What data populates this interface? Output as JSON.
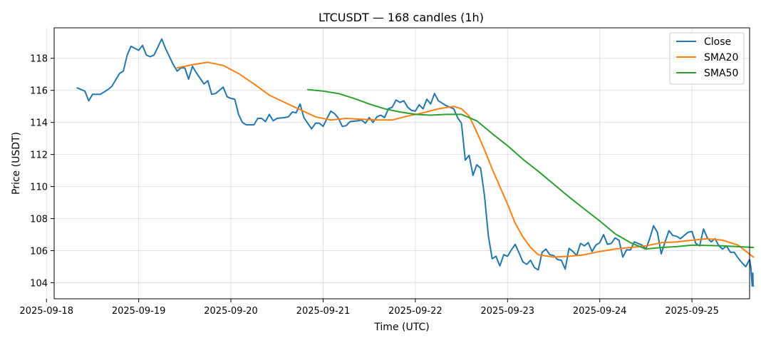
{
  "chart_data": {
    "type": "line",
    "title": "LTCUSDT — 168 candles (1h)",
    "xlabel": "Time (UTC)",
    "ylabel": "Price (USDT)",
    "x_range": [
      "2025-09-18T02:00",
      "2025-09-25T15:00"
    ],
    "ylim": [
      103.0,
      119.9
    ],
    "x_ticks": [
      "2025-09-18",
      "2025-09-19",
      "2025-09-20",
      "2025-09-21",
      "2025-09-22",
      "2025-09-23",
      "2025-09-24",
      "2025-09-25"
    ],
    "y_ticks": [
      104,
      106,
      108,
      110,
      112,
      114,
      116,
      118
    ],
    "grid": true,
    "legend_position": "top-right",
    "series": [
      {
        "name": "Close",
        "color": "#1f77b4",
        "points": [
          [
            "2025-09-18T08:00",
            116.15
          ],
          [
            "2025-09-18T10:00",
            115.95
          ],
          [
            "2025-09-18T11:00",
            115.35
          ],
          [
            "2025-09-18T12:00",
            115.75
          ],
          [
            "2025-09-18T14:00",
            115.75
          ],
          [
            "2025-09-18T16:00",
            116.05
          ],
          [
            "2025-09-18T17:00",
            116.25
          ],
          [
            "2025-09-18T19:00",
            117.05
          ],
          [
            "2025-09-18T20:00",
            117.2
          ],
          [
            "2025-09-18T21:00",
            118.2
          ],
          [
            "2025-09-18T22:00",
            118.75
          ],
          [
            "2025-09-19T00:00",
            118.5
          ],
          [
            "2025-09-18T23:59",
            118.5
          ],
          [
            "2025-09-19T01:00",
            118.8
          ],
          [
            "2025-09-19T02:00",
            118.2
          ],
          [
            "2025-09-19T03:00",
            118.1
          ],
          [
            "2025-09-19T04:00",
            118.2
          ],
          [
            "2025-09-19T06:00",
            119.2
          ],
          [
            "2025-09-19T07:00",
            118.6
          ],
          [
            "2025-09-19T09:00",
            117.6
          ],
          [
            "2025-09-19T10:00",
            117.2
          ],
          [
            "2025-09-19T11:00",
            117.4
          ],
          [
            "2025-09-19T12:00",
            117.4
          ],
          [
            "2025-09-19T13:00",
            116.7
          ],
          [
            "2025-09-19T14:00",
            117.5
          ],
          [
            "2025-09-19T15:00",
            117.1
          ],
          [
            "2025-09-19T17:00",
            116.4
          ],
          [
            "2025-09-19T18:00",
            116.6
          ],
          [
            "2025-09-19T19:00",
            115.75
          ],
          [
            "2025-09-19T20:00",
            115.8
          ],
          [
            "2025-09-19T22:00",
            116.2
          ],
          [
            "2025-09-19T23:00",
            115.6
          ],
          [
            "2025-09-20T00:00",
            115.5
          ],
          [
            "2025-09-20T01:00",
            115.45
          ],
          [
            "2025-09-20T02:00",
            114.5
          ],
          [
            "2025-09-20T03:00",
            114.0
          ],
          [
            "2025-09-20T04:00",
            113.85
          ],
          [
            "2025-09-20T06:00",
            113.85
          ],
          [
            "2025-09-20T07:00",
            114.25
          ],
          [
            "2025-09-20T08:00",
            114.25
          ],
          [
            "2025-09-20T09:00",
            114.05
          ],
          [
            "2025-09-20T10:00",
            114.5
          ],
          [
            "2025-09-20T11:00",
            114.1
          ],
          [
            "2025-09-20T12:00",
            114.25
          ],
          [
            "2025-09-20T14:00",
            114.3
          ],
          [
            "2025-09-20T15:00",
            114.35
          ],
          [
            "2025-09-20T16:00",
            114.65
          ],
          [
            "2025-09-20T17:00",
            114.6
          ],
          [
            "2025-09-20T18:00",
            115.15
          ],
          [
            "2025-09-20T19:00",
            114.3
          ],
          [
            "2025-09-20T20:00",
            113.95
          ],
          [
            "2025-09-20T21:00",
            113.6
          ],
          [
            "2025-09-20T22:00",
            113.95
          ],
          [
            "2025-09-20T23:00",
            113.95
          ],
          [
            "2025-09-21T00:00",
            113.75
          ],
          [
            "2025-09-21T01:00",
            114.25
          ],
          [
            "2025-09-21T02:00",
            114.7
          ],
          [
            "2025-09-21T03:00",
            114.55
          ],
          [
            "2025-09-21T04:00",
            114.25
          ],
          [
            "2025-09-21T05:00",
            113.75
          ],
          [
            "2025-09-21T06:00",
            113.8
          ],
          [
            "2025-09-21T07:00",
            114.05
          ],
          [
            "2025-09-21T09:00",
            114.1
          ],
          [
            "2025-09-21T10:00",
            114.15
          ],
          [
            "2025-09-21T11:00",
            113.95
          ],
          [
            "2025-09-21T12:00",
            114.3
          ],
          [
            "2025-09-21T13:00",
            114.0
          ],
          [
            "2025-09-21T14:00",
            114.35
          ],
          [
            "2025-09-21T15:00",
            114.45
          ],
          [
            "2025-09-21T16:00",
            114.3
          ],
          [
            "2025-09-21T17:00",
            114.85
          ],
          [
            "2025-09-21T18:00",
            114.95
          ],
          [
            "2025-09-21T19:00",
            115.4
          ],
          [
            "2025-09-21T20:00",
            115.25
          ],
          [
            "2025-09-21T21:00",
            115.35
          ],
          [
            "2025-09-21T22:00",
            114.95
          ],
          [
            "2025-09-21T23:00",
            114.75
          ],
          [
            "2025-09-22T00:00",
            114.7
          ],
          [
            "2025-09-22T01:00",
            115.1
          ],
          [
            "2025-09-22T02:00",
            114.85
          ],
          [
            "2025-09-22T03:00",
            115.45
          ],
          [
            "2025-09-22T04:00",
            115.15
          ],
          [
            "2025-09-22T05:00",
            115.8
          ],
          [
            "2025-09-22T06:00",
            115.35
          ],
          [
            "2025-09-22T07:00",
            115.2
          ],
          [
            "2025-09-22T08:00",
            115.05
          ],
          [
            "2025-09-22T09:00",
            114.95
          ],
          [
            "2025-09-22T10:00",
            114.85
          ],
          [
            "2025-09-22T11:00",
            114.3
          ],
          [
            "2025-09-22T12:00",
            113.95
          ],
          [
            "2025-09-22T13:00",
            111.65
          ],
          [
            "2025-09-22T14:00",
            111.95
          ],
          [
            "2025-09-22T15:00",
            110.7
          ],
          [
            "2025-09-22T16:00",
            111.35
          ],
          [
            "2025-09-22T17:00",
            111.15
          ],
          [
            "2025-09-22T18:00",
            109.45
          ],
          [
            "2025-09-22T19:00",
            106.95
          ],
          [
            "2025-09-22T20:00",
            105.5
          ],
          [
            "2025-09-22T21:00",
            105.65
          ],
          [
            "2025-09-22T22:00",
            105.05
          ],
          [
            "2025-09-22T23:00",
            105.75
          ],
          [
            "2025-09-23T00:00",
            105.65
          ],
          [
            "2025-09-23T01:00",
            106.05
          ],
          [
            "2025-09-23T02:00",
            106.4
          ],
          [
            "2025-09-23T03:00",
            105.85
          ],
          [
            "2025-09-23T04:00",
            105.3
          ],
          [
            "2025-09-23T05:00",
            105.15
          ],
          [
            "2025-09-23T06:00",
            105.4
          ],
          [
            "2025-09-23T07:00",
            104.95
          ],
          [
            "2025-09-23T08:00",
            104.8
          ],
          [
            "2025-09-23T09:00",
            105.9
          ],
          [
            "2025-09-23T10:00",
            106.1
          ],
          [
            "2025-09-23T11:00",
            105.75
          ],
          [
            "2025-09-23T12:00",
            105.7
          ],
          [
            "2025-09-23T13:00",
            105.45
          ],
          [
            "2025-09-23T14:00",
            105.4
          ],
          [
            "2025-09-23T15:00",
            104.85
          ],
          [
            "2025-09-23T16:00",
            106.15
          ],
          [
            "2025-09-23T17:00",
            105.95
          ],
          [
            "2025-09-23T18:00",
            105.7
          ],
          [
            "2025-09-23T19:00",
            106.45
          ],
          [
            "2025-09-23T20:00",
            106.3
          ],
          [
            "2025-09-23T21:00",
            106.5
          ],
          [
            "2025-09-23T22:00",
            105.95
          ],
          [
            "2025-09-23T23:00",
            106.35
          ],
          [
            "2025-09-24T00:00",
            106.5
          ],
          [
            "2025-09-24T01:00",
            107.0
          ],
          [
            "2025-09-24T02:00",
            106.4
          ],
          [
            "2025-09-24T03:00",
            106.45
          ],
          [
            "2025-09-24T04:00",
            106.8
          ],
          [
            "2025-09-24T05:00",
            106.65
          ],
          [
            "2025-09-24T06:00",
            105.6
          ],
          [
            "2025-09-24T07:00",
            106.05
          ],
          [
            "2025-09-24T08:00",
            106.05
          ],
          [
            "2025-09-24T09:00",
            106.55
          ],
          [
            "2025-09-24T10:00",
            106.45
          ],
          [
            "2025-09-24T11:00",
            106.35
          ],
          [
            "2025-09-24T12:00",
            106.1
          ],
          [
            "2025-09-24T13:00",
            106.75
          ],
          [
            "2025-09-24T14:00",
            107.55
          ],
          [
            "2025-09-24T15:00",
            107.15
          ],
          [
            "2025-09-24T16:00",
            105.8
          ],
          [
            "2025-09-24T17:00",
            106.55
          ],
          [
            "2025-09-24T18:00",
            107.25
          ],
          [
            "2025-09-24T19:00",
            106.95
          ],
          [
            "2025-09-24T20:00",
            106.9
          ],
          [
            "2025-09-24T21:00",
            106.75
          ],
          [
            "2025-09-24T22:00",
            106.95
          ],
          [
            "2025-09-24T23:00",
            107.15
          ],
          [
            "2025-09-25T00:00",
            107.2
          ],
          [
            "2025-09-25T01:00",
            106.45
          ],
          [
            "2025-09-25T02:00",
            106.3
          ],
          [
            "2025-09-25T03:00",
            107.35
          ],
          [
            "2025-09-25T04:00",
            106.8
          ],
          [
            "2025-09-25T05:00",
            106.55
          ],
          [
            "2025-09-25T06:00",
            106.75
          ],
          [
            "2025-09-25T07:00",
            106.3
          ],
          [
            "2025-09-25T08:00",
            106.1
          ],
          [
            "2025-09-25T09:00",
            106.3
          ],
          [
            "2025-09-25T10:00",
            105.9
          ],
          [
            "2025-09-25T11:00",
            105.9
          ],
          [
            "2025-09-25T12:00",
            105.55
          ],
          [
            "2025-09-25T13:00",
            105.25
          ],
          [
            "2025-09-25T14:00",
            105.0
          ],
          [
            "2025-09-25T15:00",
            105.45
          ],
          [
            "2025-09-25T15:20",
            104.95
          ],
          [
            "2025-09-25T15:40",
            103.8
          ],
          [
            "2025-09-25T15:50",
            104.6
          ],
          [
            "2025-09-25T15:55",
            103.85
          ],
          [
            "2025-09-25T15:59",
            103.8
          ]
        ]
      },
      {
        "name": "SMA20",
        "color": "#ff7f0e",
        "points": [
          [
            "2025-09-19T10:00",
            117.4
          ],
          [
            "2025-09-19T14:00",
            117.6
          ],
          [
            "2025-09-19T18:00",
            117.75
          ],
          [
            "2025-09-19T22:00",
            117.55
          ],
          [
            "2025-09-20T02:00",
            117.05
          ],
          [
            "2025-09-20T06:00",
            116.4
          ],
          [
            "2025-09-20T10:00",
            115.7
          ],
          [
            "2025-09-20T14:00",
            115.25
          ],
          [
            "2025-09-20T18:00",
            114.8
          ],
          [
            "2025-09-20T22:00",
            114.35
          ],
          [
            "2025-09-21T02:00",
            114.15
          ],
          [
            "2025-09-21T06:00",
            114.25
          ],
          [
            "2025-09-21T10:00",
            114.2
          ],
          [
            "2025-09-21T14:00",
            114.15
          ],
          [
            "2025-09-21T18:00",
            114.15
          ],
          [
            "2025-09-21T22:00",
            114.4
          ],
          [
            "2025-09-22T02:00",
            114.6
          ],
          [
            "2025-09-22T06:00",
            114.85
          ],
          [
            "2025-09-22T10:00",
            115.0
          ],
          [
            "2025-09-22T12:00",
            114.85
          ],
          [
            "2025-09-22T14:00",
            114.4
          ],
          [
            "2025-09-22T16:00",
            113.4
          ],
          [
            "2025-09-22T18:00",
            112.3
          ],
          [
            "2025-09-22T20:00",
            111.1
          ],
          [
            "2025-09-22T22:00",
            110.0
          ],
          [
            "2025-09-23T00:00",
            108.9
          ],
          [
            "2025-09-23T02:00",
            107.7
          ],
          [
            "2025-09-23T04:00",
            106.85
          ],
          [
            "2025-09-23T06:00",
            106.2
          ],
          [
            "2025-09-23T08:00",
            105.75
          ],
          [
            "2025-09-23T12:00",
            105.6
          ],
          [
            "2025-09-23T16:00",
            105.65
          ],
          [
            "2025-09-23T20:00",
            105.75
          ],
          [
            "2025-09-24T00:00",
            105.95
          ],
          [
            "2025-09-24T04:00",
            106.1
          ],
          [
            "2025-09-24T08:00",
            106.2
          ],
          [
            "2025-09-24T12:00",
            106.3
          ],
          [
            "2025-09-24T16:00",
            106.5
          ],
          [
            "2025-09-24T20:00",
            106.55
          ],
          [
            "2025-09-25T00:00",
            106.65
          ],
          [
            "2025-09-25T04:00",
            106.75
          ],
          [
            "2025-09-25T08:00",
            106.65
          ],
          [
            "2025-09-25T12:00",
            106.35
          ],
          [
            "2025-09-25T15:59",
            105.6
          ]
        ]
      },
      {
        "name": "SMA50",
        "color": "#2ca02c",
        "points": [
          [
            "2025-09-20T20:00",
            116.05
          ],
          [
            "2025-09-21T00:00",
            115.95
          ],
          [
            "2025-09-21T04:00",
            115.8
          ],
          [
            "2025-09-21T08:00",
            115.5
          ],
          [
            "2025-09-21T12:00",
            115.15
          ],
          [
            "2025-09-21T16:00",
            114.85
          ],
          [
            "2025-09-21T20:00",
            114.65
          ],
          [
            "2025-09-22T00:00",
            114.5
          ],
          [
            "2025-09-22T04:00",
            114.45
          ],
          [
            "2025-09-22T08:00",
            114.5
          ],
          [
            "2025-09-22T12:00",
            114.5
          ],
          [
            "2025-09-22T16:00",
            114.1
          ],
          [
            "2025-09-22T20:00",
            113.3
          ],
          [
            "2025-09-23T00:00",
            112.55
          ],
          [
            "2025-09-23T04:00",
            111.7
          ],
          [
            "2025-09-23T08:00",
            110.95
          ],
          [
            "2025-09-23T12:00",
            110.15
          ],
          [
            "2025-09-23T16:00",
            109.35
          ],
          [
            "2025-09-23T20:00",
            108.6
          ],
          [
            "2025-09-24T00:00",
            107.85
          ],
          [
            "2025-09-24T04:00",
            107.05
          ],
          [
            "2025-09-24T08:00",
            106.5
          ],
          [
            "2025-09-24T12:00",
            106.1
          ],
          [
            "2025-09-24T16:00",
            106.2
          ],
          [
            "2025-09-24T20:00",
            106.25
          ],
          [
            "2025-09-25T00:00",
            106.35
          ],
          [
            "2025-09-25T08:00",
            106.3
          ],
          [
            "2025-09-25T15:59",
            106.2
          ]
        ]
      }
    ]
  }
}
